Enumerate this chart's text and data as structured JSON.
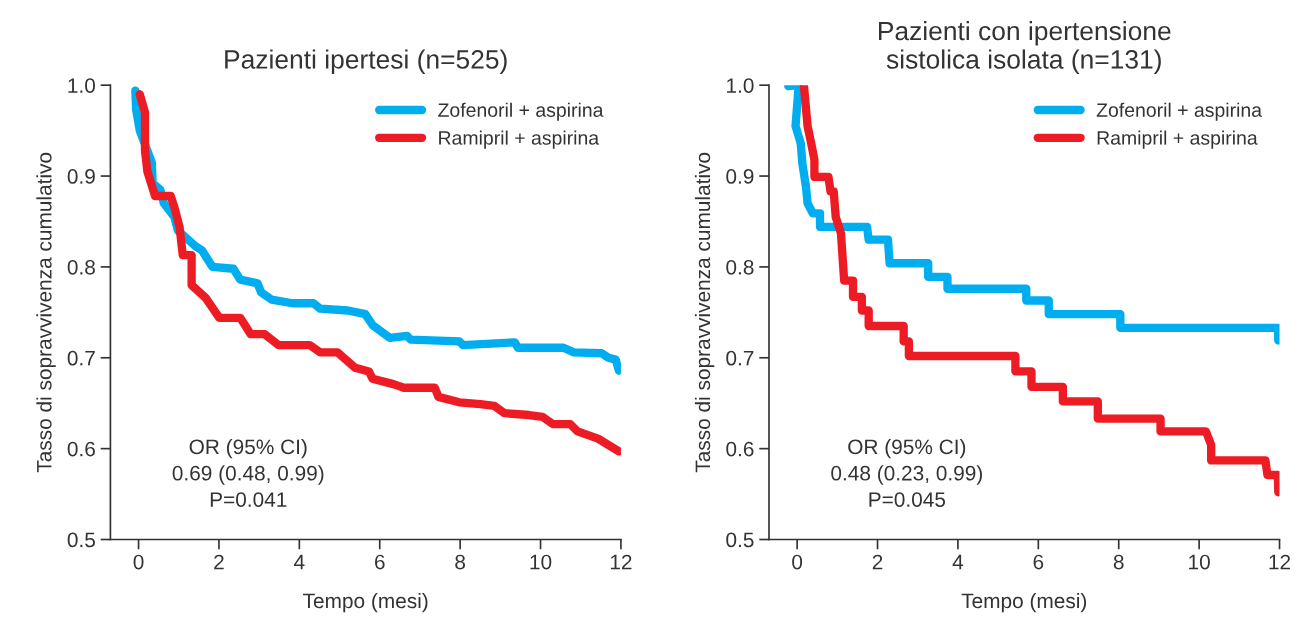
{
  "chart_data": [
    {
      "type": "line",
      "title": "Pazienti ipertesi (n=525)",
      "xlabel": "Tempo (mesi)",
      "ylabel": "Tasso di sopravvivenza cumulativo",
      "xlim": [
        -0.7,
        12
      ],
      "xticks": [
        0,
        2,
        4,
        6,
        8,
        10,
        12
      ],
      "ylim": [
        0.5,
        1.0
      ],
      "yticks": [
        {
          "value": 0.5,
          "label": "0.5"
        },
        {
          "value": 0.6,
          "label": "0.6"
        },
        {
          "value": 0.7,
          "label": "0.7"
        },
        {
          "value": 0.8,
          "label": "0.8"
        },
        {
          "value": 0.9,
          "label": "0.9"
        },
        {
          "value": 1.0,
          "label": "1.0"
        }
      ],
      "grid": false,
      "legend": "top right",
      "marker": "none",
      "line_style": "solid",
      "annotations": [
        "OR (95% CI)",
        "0.69 (0.48, 0.99)",
        "P=0.041"
      ],
      "series": [
        {
          "name": "Zofenoril + aspirina",
          "color": "#00aeef",
          "x": [
            -0.08,
            -0.06,
            0.03,
            0.2,
            0.33,
            0.35,
            0.54,
            0.63,
            0.89,
            0.98,
            1.41,
            1.58,
            1.84,
            2.36,
            2.53,
            2.96,
            3.05,
            3.31,
            3.83,
            4.35,
            4.52,
            5.21,
            5.64,
            5.82,
            6.25,
            6.68,
            6.77,
            7.98,
            8.07,
            9.36,
            9.44,
            10.57,
            10.83,
            11.52,
            11.69,
            11.87,
            11.95
          ],
          "values": [
            0.994,
            0.973,
            0.95,
            0.93,
            0.915,
            0.892,
            0.885,
            0.87,
            0.855,
            0.84,
            0.823,
            0.818,
            0.8,
            0.798,
            0.786,
            0.782,
            0.772,
            0.764,
            0.76,
            0.76,
            0.754,
            0.752,
            0.748,
            0.736,
            0.722,
            0.724,
            0.72,
            0.718,
            0.714,
            0.717,
            0.711,
            0.711,
            0.706,
            0.705,
            0.7,
            0.698,
            0.686
          ]
        },
        {
          "name": "Ramipril + aspirina",
          "color": "#ed1c24",
          "x": [
            0.03,
            0.16,
            0.16,
            0.22,
            0.41,
            0.8,
            0.89,
            1.02,
            1.1,
            1.32,
            1.32,
            1.67,
            2.01,
            2.53,
            2.79,
            3.14,
            3.48,
            4.26,
            4.52,
            4.95,
            5.39,
            5.73,
            5.82,
            6.34,
            6.6,
            7.37,
            7.46,
            7.98,
            8.5,
            8.85,
            9.1,
            9.71,
            10.05,
            10.31,
            10.74,
            10.92,
            11.43,
            11.95
          ],
          "values": [
            0.99,
            0.97,
            0.928,
            0.905,
            0.878,
            0.878,
            0.866,
            0.844,
            0.813,
            0.813,
            0.78,
            0.766,
            0.744,
            0.744,
            0.726,
            0.726,
            0.714,
            0.714,
            0.706,
            0.706,
            0.689,
            0.685,
            0.677,
            0.671,
            0.667,
            0.667,
            0.657,
            0.651,
            0.649,
            0.647,
            0.639,
            0.637,
            0.635,
            0.627,
            0.627,
            0.619,
            0.611,
            0.597
          ]
        }
      ]
    },
    {
      "type": "line",
      "title": "Pazienti con ipertensione\nsistolica isolata (n=131)",
      "xlabel": "Tempo (mesi)",
      "ylabel": "Tasso di sopravvivenza cumulativo",
      "xlim": [
        -0.7,
        12
      ],
      "xticks": [
        0,
        2,
        4,
        6,
        8,
        10,
        12
      ],
      "ylim": [
        0.5,
        1.0
      ],
      "yticks": [
        {
          "value": 0.5,
          "label": "0.5"
        },
        {
          "value": 0.6,
          "label": "0.6"
        },
        {
          "value": 0.7,
          "label": "0.7"
        },
        {
          "value": 0.8,
          "label": "0.8"
        },
        {
          "value": 0.9,
          "label": "0.9"
        },
        {
          "value": 1.0,
          "label": "1.0"
        }
      ],
      "grid": false,
      "legend": "top right",
      "marker": "none",
      "line_style": "solid",
      "annotations": [
        "OR (95% CI)",
        "0.48 (0.23, 0.99)",
        "P=0.045"
      ],
      "series": [
        {
          "name": "Zofenoril + aspirina",
          "color": "#00aeef",
          "x": [
            -0.22,
            0.04,
            -0.04,
            0.09,
            0.13,
            0.22,
            0.26,
            0.39,
            0.57,
            0.57,
            1.74,
            1.78,
            2.26,
            2.3,
            3.26,
            3.26,
            3.74,
            3.74,
            5.7,
            5.7,
            6.26,
            6.26,
            8.04,
            8.04,
            11.96,
            11.97
          ],
          "values": [
            0.999,
            1.0,
            0.955,
            0.936,
            0.914,
            0.888,
            0.87,
            0.859,
            0.859,
            0.844,
            0.844,
            0.83,
            0.83,
            0.804,
            0.804,
            0.789,
            0.789,
            0.776,
            0.776,
            0.763,
            0.763,
            0.748,
            0.748,
            0.733,
            0.733,
            0.719
          ]
        },
        {
          "name": "Ramipril + aspirina",
          "color": "#ed1c24",
          "x": [
            0.17,
            0.26,
            0.35,
            0.43,
            0.43,
            0.78,
            0.83,
            0.91,
            0.96,
            1.09,
            1.17,
            1.39,
            1.39,
            1.61,
            1.61,
            1.78,
            1.78,
            2.65,
            2.65,
            2.78,
            2.78,
            5.43,
            5.43,
            5.83,
            5.83,
            6.61,
            6.61,
            7.48,
            7.48,
            9.04,
            9.04,
            10.17,
            10.3,
            10.3,
            11.65,
            11.7,
            11.96,
            11.97
          ],
          "values": [
            0.999,
            0.955,
            0.936,
            0.918,
            0.899,
            0.899,
            0.883,
            0.883,
            0.855,
            0.837,
            0.785,
            0.785,
            0.767,
            0.767,
            0.752,
            0.752,
            0.735,
            0.735,
            0.718,
            0.718,
            0.702,
            0.702,
            0.685,
            0.685,
            0.668,
            0.668,
            0.652,
            0.652,
            0.633,
            0.633,
            0.619,
            0.619,
            0.604,
            0.587,
            0.587,
            0.571,
            0.571,
            0.552
          ]
        }
      ]
    }
  ]
}
